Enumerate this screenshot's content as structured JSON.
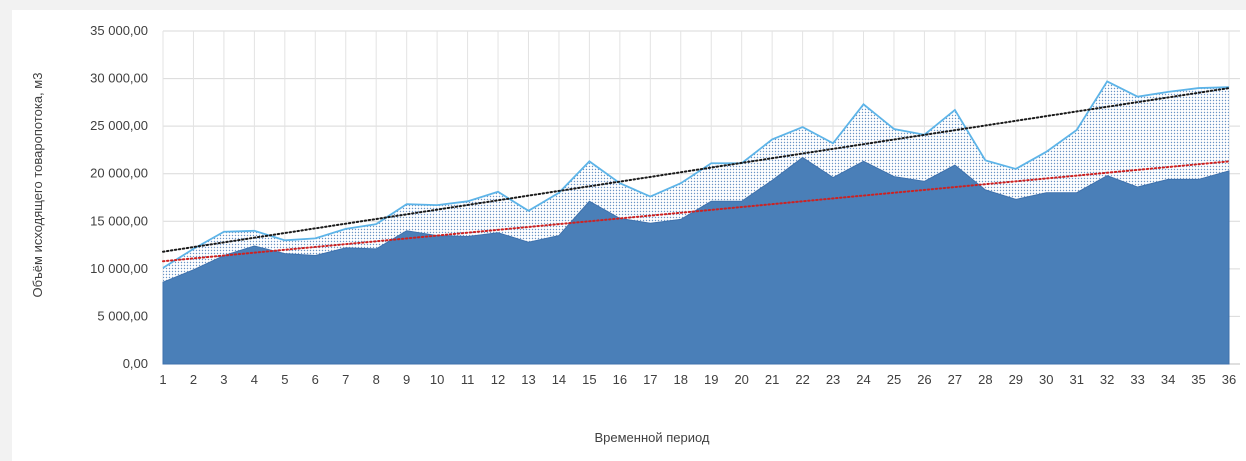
{
  "chart_data": {
    "type": "area",
    "xlabel": "Временной период",
    "ylabel": "Объём исходящего товаропотока, м3",
    "ylim": [
      0,
      35000
    ],
    "y_ticks": [
      "0,00",
      "5 000,00",
      "10 000,00",
      "15 000,00",
      "20 000,00",
      "25 000,00",
      "30 000,00",
      "35 000,00"
    ],
    "categories": [
      "1",
      "2",
      "3",
      "4",
      "5",
      "6",
      "7",
      "8",
      "9",
      "10",
      "11",
      "12",
      "13",
      "14",
      "15",
      "16",
      "17",
      "18",
      "19",
      "20",
      "21",
      "22",
      "23",
      "24",
      "25",
      "26",
      "27",
      "28",
      "29",
      "30",
      "31",
      "32",
      "33",
      "34",
      "35",
      "36"
    ],
    "grid": true,
    "legend": "none",
    "series": [
      {
        "style": "dotted-area",
        "color": "#5db4e8",
        "values": [
          10100,
          12100,
          13900,
          14000,
          13000,
          13200,
          14200,
          14700,
          16800,
          16700,
          17100,
          18100,
          16100,
          18000,
          21300,
          19000,
          17600,
          19000,
          21100,
          21100,
          23600,
          24900,
          23200,
          27300,
          24700,
          24100,
          26700,
          21400,
          20500,
          22300,
          24600,
          29700,
          28100,
          28600,
          29000,
          29100
        ]
      },
      {
        "style": "filled-area",
        "color": "#4a7fb8",
        "values": [
          8600,
          9900,
          11400,
          12400,
          11600,
          11400,
          12200,
          12100,
          14000,
          13500,
          13400,
          13800,
          12800,
          13500,
          17100,
          15300,
          14800,
          15200,
          17100,
          17100,
          19300,
          21700,
          19600,
          21300,
          19700,
          19200,
          20900,
          18300,
          17300,
          18000,
          18000,
          19800,
          18600,
          19400,
          19400,
          20300
        ]
      }
    ],
    "trendlines": [
      {
        "color": "#1a1a1a",
        "start": 11800,
        "end": 29000
      },
      {
        "color": "#cc2222",
        "start": 10800,
        "end": 21300
      }
    ]
  }
}
